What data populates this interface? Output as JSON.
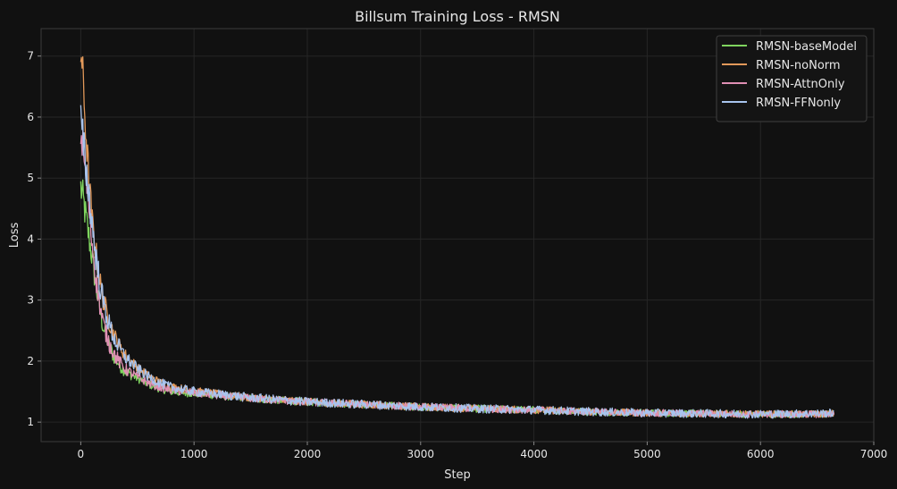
{
  "chart_data": {
    "type": "line",
    "title": "Billsum Training Loss - RMSN",
    "xlabel": "Step",
    "ylabel": "Loss",
    "xlim": [
      -350,
      7000
    ],
    "ylim": [
      0.68,
      7.45
    ],
    "xticks": [
      0,
      1000,
      2000,
      3000,
      4000,
      5000,
      6000,
      7000
    ],
    "yticks": [
      1,
      2,
      3,
      4,
      5,
      6,
      7
    ],
    "grid": true,
    "legend_position": "top-right",
    "colors": {
      "background": "#111111",
      "axes": "#3a3a3a",
      "grid": "#262626",
      "text": "#e6e6e6"
    },
    "series": [
      {
        "name": "RMSN-baseModel",
        "color": "#7fd45f",
        "noise": 0.06,
        "points": [
          [
            0,
            4.85
          ],
          [
            25,
            4.6
          ],
          [
            50,
            4.3
          ],
          [
            75,
            4.0
          ],
          [
            100,
            3.7
          ],
          [
            125,
            3.35
          ],
          [
            150,
            3.05
          ],
          [
            175,
            2.78
          ],
          [
            200,
            2.55
          ],
          [
            250,
            2.25
          ],
          [
            300,
            2.05
          ],
          [
            350,
            1.92
          ],
          [
            400,
            1.82
          ],
          [
            500,
            1.72
          ],
          [
            600,
            1.62
          ],
          [
            700,
            1.55
          ],
          [
            800,
            1.5
          ],
          [
            1000,
            1.47
          ],
          [
            1200,
            1.44
          ],
          [
            1500,
            1.39
          ],
          [
            2000,
            1.33
          ],
          [
            2500,
            1.29
          ],
          [
            3000,
            1.25
          ],
          [
            3500,
            1.22
          ],
          [
            4000,
            1.2
          ],
          [
            4500,
            1.17
          ],
          [
            5000,
            1.15
          ],
          [
            5500,
            1.14
          ],
          [
            6000,
            1.13
          ],
          [
            6500,
            1.13
          ],
          [
            6650,
            1.14
          ]
        ]
      },
      {
        "name": "RMSN-noNorm",
        "color": "#e2995a",
        "noise": 0.06,
        "points": [
          [
            0,
            7.05
          ],
          [
            10,
            6.95
          ],
          [
            25,
            6.4
          ],
          [
            50,
            5.6
          ],
          [
            75,
            4.9
          ],
          [
            100,
            4.3
          ],
          [
            125,
            3.9
          ],
          [
            150,
            3.55
          ],
          [
            175,
            3.25
          ],
          [
            200,
            3.0
          ],
          [
            250,
            2.65
          ],
          [
            300,
            2.4
          ],
          [
            350,
            2.22
          ],
          [
            400,
            2.08
          ],
          [
            500,
            1.9
          ],
          [
            600,
            1.75
          ],
          [
            700,
            1.65
          ],
          [
            800,
            1.58
          ],
          [
            1000,
            1.51
          ],
          [
            1200,
            1.46
          ],
          [
            1500,
            1.4
          ],
          [
            2000,
            1.33
          ],
          [
            2500,
            1.29
          ],
          [
            3000,
            1.25
          ],
          [
            3500,
            1.22
          ],
          [
            4000,
            1.2
          ],
          [
            4500,
            1.17
          ],
          [
            5000,
            1.15
          ],
          [
            5500,
            1.14
          ],
          [
            6000,
            1.13
          ],
          [
            6500,
            1.13
          ],
          [
            6650,
            1.14
          ]
        ]
      },
      {
        "name": "RMSN-AttnOnly",
        "color": "#e08fb4",
        "noise": 0.06,
        "points": [
          [
            0,
            5.75
          ],
          [
            25,
            5.4
          ],
          [
            50,
            4.95
          ],
          [
            75,
            4.45
          ],
          [
            100,
            3.95
          ],
          [
            125,
            3.5
          ],
          [
            150,
            3.15
          ],
          [
            175,
            2.85
          ],
          [
            200,
            2.6
          ],
          [
            250,
            2.3
          ],
          [
            300,
            2.1
          ],
          [
            350,
            1.96
          ],
          [
            400,
            1.86
          ],
          [
            500,
            1.74
          ],
          [
            600,
            1.64
          ],
          [
            700,
            1.57
          ],
          [
            800,
            1.52
          ],
          [
            1000,
            1.48
          ],
          [
            1200,
            1.44
          ],
          [
            1500,
            1.39
          ],
          [
            2000,
            1.33
          ],
          [
            2500,
            1.29
          ],
          [
            3000,
            1.25
          ],
          [
            3500,
            1.22
          ],
          [
            4000,
            1.2
          ],
          [
            4500,
            1.17
          ],
          [
            5000,
            1.15
          ],
          [
            5500,
            1.14
          ],
          [
            6000,
            1.13
          ],
          [
            6500,
            1.13
          ],
          [
            6650,
            1.14
          ]
        ]
      },
      {
        "name": "RMSN-FFNonly",
        "color": "#a8c4ee",
        "noise": 0.07,
        "points": [
          [
            0,
            5.9
          ],
          [
            25,
            5.5
          ],
          [
            50,
            5.1
          ],
          [
            75,
            4.7
          ],
          [
            100,
            4.25
          ],
          [
            125,
            3.85
          ],
          [
            150,
            3.5
          ],
          [
            175,
            3.2
          ],
          [
            200,
            2.95
          ],
          [
            250,
            2.6
          ],
          [
            300,
            2.35
          ],
          [
            350,
            2.18
          ],
          [
            400,
            2.05
          ],
          [
            500,
            1.88
          ],
          [
            600,
            1.74
          ],
          [
            700,
            1.64
          ],
          [
            800,
            1.57
          ],
          [
            1000,
            1.5
          ],
          [
            1200,
            1.46
          ],
          [
            1500,
            1.4
          ],
          [
            2000,
            1.33
          ],
          [
            2500,
            1.29
          ],
          [
            3000,
            1.25
          ],
          [
            3500,
            1.22
          ],
          [
            4000,
            1.2
          ],
          [
            4500,
            1.17
          ],
          [
            5000,
            1.15
          ],
          [
            5500,
            1.14
          ],
          [
            6000,
            1.13
          ],
          [
            6500,
            1.14
          ],
          [
            6650,
            1.15
          ]
        ]
      }
    ]
  }
}
